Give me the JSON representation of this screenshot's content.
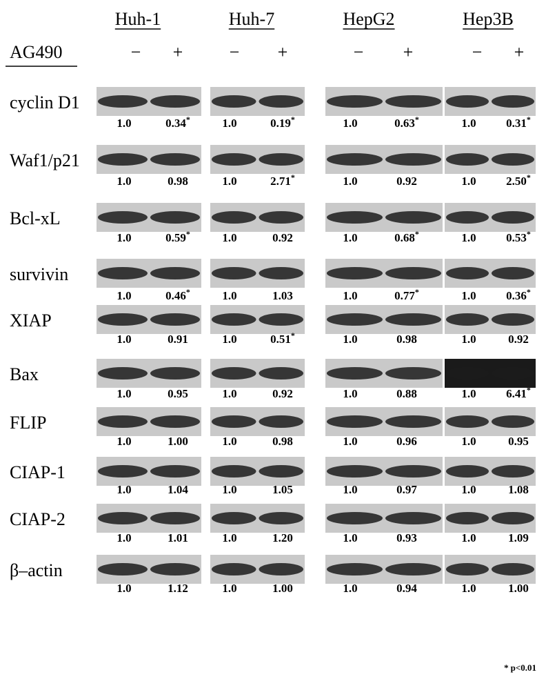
{
  "columns": [
    "Huh-1",
    "Huh-7",
    "HepG2",
    "Hep3B"
  ],
  "treatment": {
    "label": "AG490",
    "levels": [
      "−",
      "+"
    ]
  },
  "rows": [
    {
      "label": "cyclin D1",
      "cells": [
        "1.0",
        {
          "value": "0.34",
          "note": "*"
        },
        "1.0",
        {
          "value": "0.19",
          "note": "*"
        },
        "1.0",
        {
          "value": "0.63",
          "note": "*"
        },
        "1.0",
        {
          "value": "0.31",
          "note": "*"
        }
      ]
    },
    {
      "label": "Waf1/p21",
      "cells": [
        "1.0",
        "0.98",
        "1.0",
        {
          "value": "2.71",
          "note": "*"
        },
        "1.0",
        "0.92",
        "1.0",
        {
          "value": "2.50",
          "note": "*"
        }
      ]
    },
    {
      "label": "Bcl-xL",
      "cells": [
        "1.0",
        {
          "value": "0.59",
          "note": "*"
        },
        "1.0",
        "0.92",
        "1.0",
        {
          "value": "0.68",
          "note": "*"
        },
        "1.0",
        {
          "value": "0.53",
          "note": "*"
        }
      ]
    },
    {
      "label": "survivin",
      "cells": [
        "1.0",
        {
          "value": "0.46",
          "note": "*"
        },
        "1.0",
        "1.03",
        "1.0",
        {
          "value": "0.77",
          "note": "*"
        },
        "1.0",
        {
          "value": "0.36",
          "note": "*"
        }
      ]
    },
    {
      "label": "XIAP",
      "cells": [
        "1.0",
        "0.91",
        "1.0",
        {
          "value": "0.51",
          "note": "*"
        },
        "1.0",
        "0.98",
        "1.0",
        "0.92"
      ]
    },
    {
      "label": "Bax",
      "cells": [
        "1.0",
        "0.95",
        "1.0",
        "0.92",
        "1.0",
        "0.88",
        "1.0",
        {
          "value": "6.41",
          "note": "*"
        }
      ]
    },
    {
      "label": "FLIP",
      "cells": [
        "1.0",
        "1.00",
        "1.0",
        "0.98",
        "1.0",
        "0.96",
        "1.0",
        "0.95"
      ]
    },
    {
      "label": "CIAP-1",
      "cells": [
        "1.0",
        "1.04",
        "1.0",
        "1.05",
        "1.0",
        "0.97",
        "1.0",
        "1.08"
      ]
    },
    {
      "label": "CIAP-2",
      "cells": [
        "1.0",
        "1.01",
        "1.0",
        "1.20",
        "1.0",
        "0.93",
        "1.0",
        "1.09"
      ]
    },
    {
      "label": "β–actin",
      "cells": [
        "1.0",
        "1.12",
        "1.0",
        "1.00",
        "1.0",
        "0.94",
        "1.0",
        "1.00"
      ]
    }
  ],
  "footnote": {
    "mark": "*",
    "text": "p<0.01"
  }
}
